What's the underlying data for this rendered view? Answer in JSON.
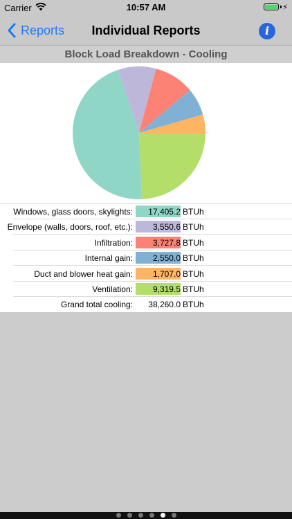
{
  "status_bar": {
    "carrier": "Carrier",
    "time": "10:57 AM",
    "wifi_icon": "wifi-icon",
    "battery_icon": "battery-icon",
    "battery_level": 1.0,
    "battery_color": "#4cd964"
  },
  "nav": {
    "back_label": "Reports",
    "title": "Individual Reports",
    "info_label": "i",
    "accent": "#1a7cf5"
  },
  "chart_title": "Block Load Breakdown - Cooling",
  "chart_data": {
    "type": "pie",
    "title": "Block Load Breakdown - Cooling",
    "unit": "BTUh",
    "slices": [
      {
        "label": "Windows, glass doors, skylights:",
        "value": 17405.2,
        "color": "#8fd6c7"
      },
      {
        "label": "Envelope (walls, doors, roof, etc.):",
        "value": 3550.6,
        "color": "#bdb8da"
      },
      {
        "label": "Infiltration:",
        "value": 3727.8,
        "color": "#fb8274"
      },
      {
        "label": "Internal gain:",
        "value": 2550.0,
        "color": "#80b1d4"
      },
      {
        "label": "Duct and blower heat gain:",
        "value": 1707.0,
        "color": "#fdb463"
      },
      {
        "label": "Ventilation:",
        "value": 9319.5,
        "color": "#b3de6a"
      }
    ],
    "slice_order_drawn": [
      5,
      0,
      1,
      2,
      3,
      4
    ]
  },
  "table": {
    "rows": [
      {
        "label": "Windows, glass doors, skylights:",
        "value": "17,405.2",
        "unit": "BTUh",
        "color": "#8fd6c7"
      },
      {
        "label": "Envelope (walls, doors, roof, etc.):",
        "value": "3,550.6",
        "unit": "BTUh",
        "color": "#bdb8da"
      },
      {
        "label": "Infiltration:",
        "value": "3,727.8",
        "unit": "BTUh",
        "color": "#fb8274"
      },
      {
        "label": "Internal gain:",
        "value": "2,550.0",
        "unit": "BTUh",
        "color": "#80b1d4"
      },
      {
        "label": "Duct and blower heat gain:",
        "value": "1,707.0",
        "unit": "BTUh",
        "color": "#fdb463"
      },
      {
        "label": "Ventilation:",
        "value": "9,319.5",
        "unit": "BTUh",
        "color": "#b3de6a"
      },
      {
        "label": "Grand total cooling:",
        "value": "38,260.0",
        "unit": "BTUh",
        "color": ""
      }
    ]
  },
  "page_control": {
    "count": 6,
    "active_index": 4
  }
}
